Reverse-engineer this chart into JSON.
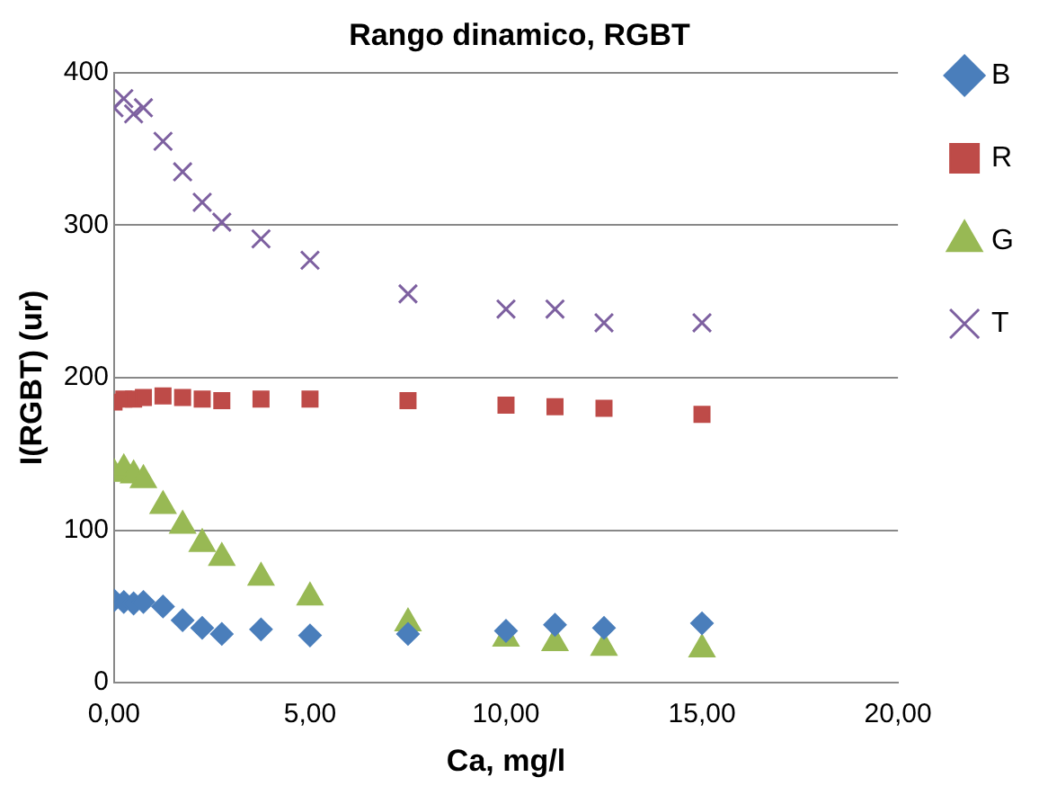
{
  "chart_data": {
    "type": "scatter",
    "title": "Rango dinamico, RGBT",
    "xlabel": "Ca, mg/l",
    "ylabel": "I(RGBT) (ur)",
    "x": [
      0,
      0.25,
      0.5,
      0.75,
      1.25,
      1.75,
      2.25,
      2.75,
      3.75,
      5,
      7.5,
      10,
      11.25,
      12.5,
      15
    ],
    "xlim": [
      0,
      20
    ],
    "xticks": [
      {
        "value": 0,
        "label": "0,00"
      },
      {
        "value": 5,
        "label": "5,00"
      },
      {
        "value": 10,
        "label": "10,00"
      },
      {
        "value": 15,
        "label": "15,00"
      },
      {
        "value": 20,
        "label": "20,00"
      }
    ],
    "ylim": [
      0,
      400
    ],
    "yticks": [
      0,
      100,
      200,
      300,
      400
    ],
    "grid": "y",
    "legend": "right",
    "series": [
      {
        "name": "B",
        "color": "#4a7ebb",
        "marker": "diamond",
        "values": [
          54,
          53,
          52,
          53,
          50,
          41,
          36,
          32,
          35,
          31,
          32,
          34,
          38,
          36,
          39
        ]
      },
      {
        "name": "R",
        "color": "#be4b48",
        "marker": "square",
        "values": [
          184,
          186,
          186,
          187,
          188,
          187,
          186,
          185,
          186,
          186,
          185,
          182,
          181,
          180,
          176
        ]
      },
      {
        "name": "G",
        "color": "#98b954",
        "marker": "triangle",
        "values": [
          137,
          140,
          136,
          133,
          116,
          103,
          91,
          82,
          69,
          56,
          39,
          29,
          26,
          23,
          22
        ]
      },
      {
        "name": "T",
        "color": "#7d60a0",
        "marker": "cross",
        "values": [
          377,
          383,
          373,
          377,
          355,
          335,
          315,
          302,
          291,
          277,
          255,
          245,
          245,
          236,
          236
        ]
      }
    ]
  }
}
